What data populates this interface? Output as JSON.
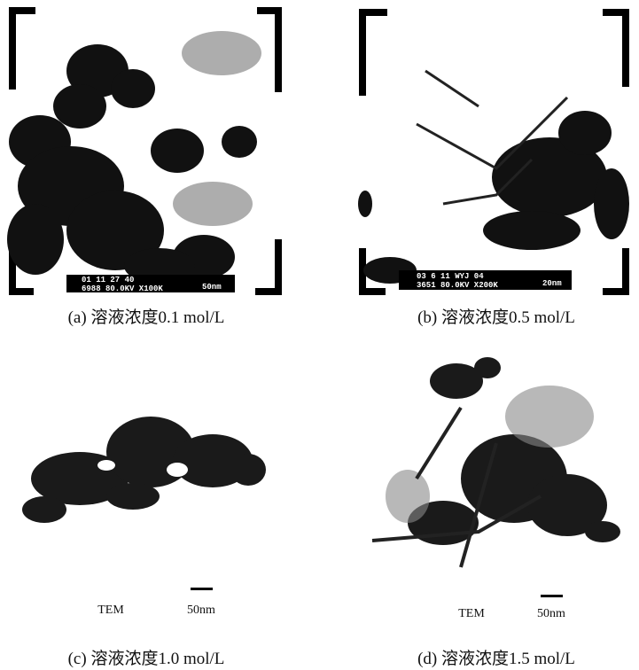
{
  "panels": [
    {
      "caption": "(a) 溶液浓度0.1 mol/L",
      "info": [
        "01 11 27 40",
        "6988 80.0KV X100K",
        "50nm"
      ]
    },
    {
      "caption": "(b) 溶液浓度0.5 mol/L",
      "info": [
        "03 6 11 WYJ 04",
        "3651 80.0KV X200K",
        "20nm"
      ]
    },
    {
      "caption": "(c) 溶液浓度1.0 mol/L",
      "labels": [
        "TEM",
        "50nm"
      ]
    },
    {
      "caption": "(d) 溶液浓度1.5 mol/L",
      "labels": [
        "TEM",
        "50nm"
      ]
    }
  ]
}
